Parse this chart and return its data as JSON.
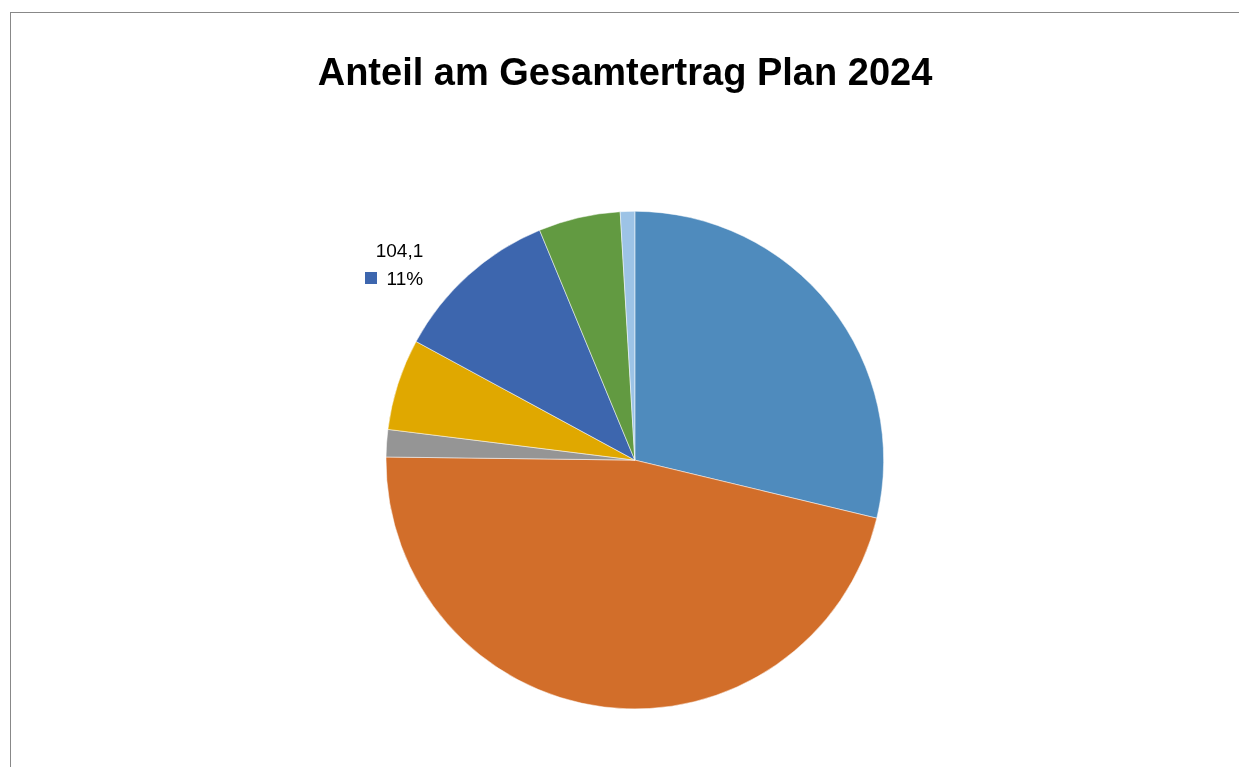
{
  "chart_data": {
    "type": "pie",
    "title": "Anteil am Gesamtertrag Plan 2024",
    "categories": [
      null,
      null,
      null,
      null,
      null,
      null,
      null
    ],
    "values": [
      276,
      446,
      17,
      57,
      104.1,
      51,
      9
    ],
    "colors": [
      "#4f8bbd",
      "#d26e2a",
      "#959595",
      "#e0a800",
      "#3d66ae",
      "#629a41",
      "#9dc3e6"
    ],
    "value_labels": [
      null,
      null,
      null,
      null,
      "104,1\n11%",
      null,
      null
    ]
  }
}
